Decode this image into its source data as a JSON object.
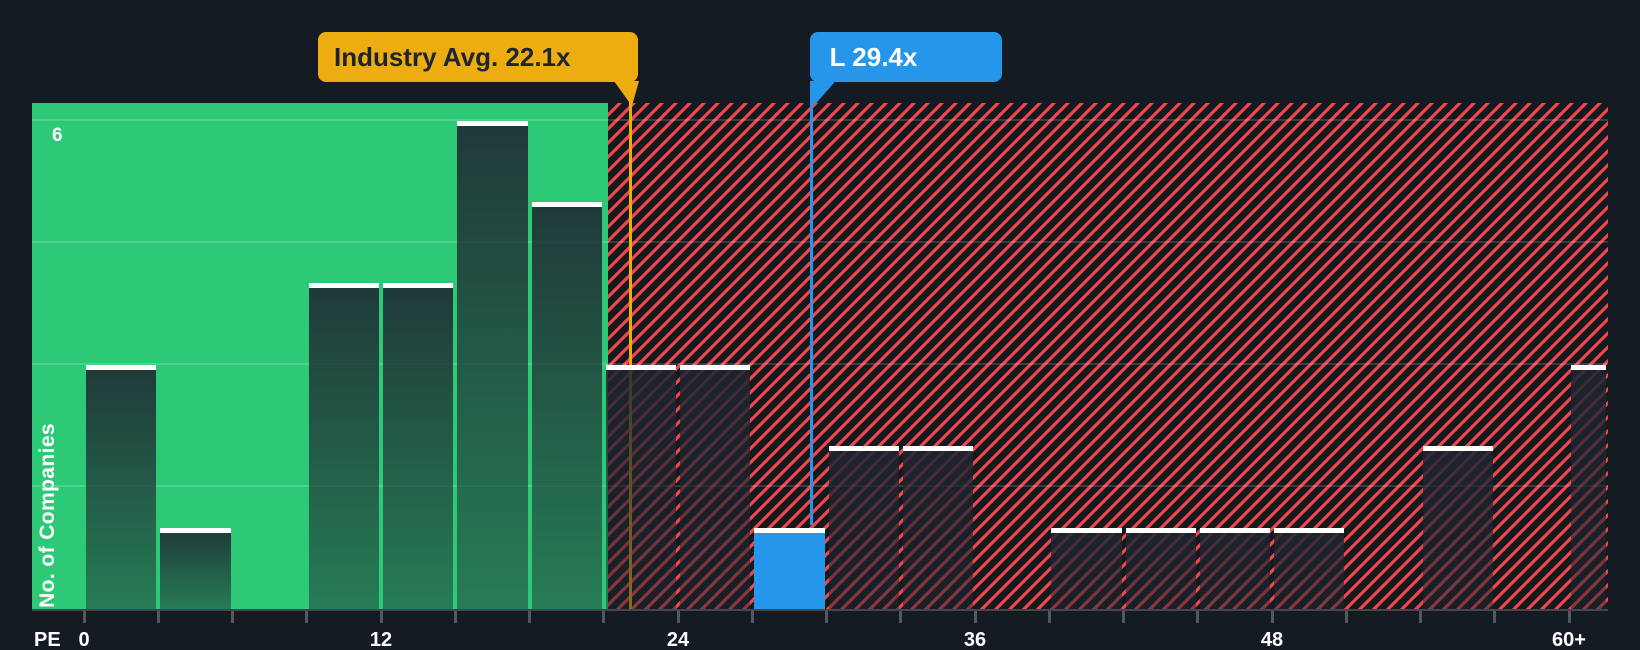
{
  "colors": {
    "background": "#151b23",
    "green_zone": "#2dc977",
    "hatch_background": "#14181f",
    "hatch_stripe": "#ef4749",
    "bar_overlay": "#1e2530",
    "bar_top_stroke": "#ffffff",
    "highlight_bar": "#2696ea",
    "industry_marker": "#edad10",
    "company_marker": "#2696ea",
    "callout_text_dark": "#1d2530",
    "axis_line": "#42464d",
    "tick": "#54585f",
    "label": "#ffffff"
  },
  "chart_data": {
    "type": "bar",
    "subtype": "histogram",
    "x_axis": {
      "label": "PE",
      "range": [
        0,
        63.6
      ],
      "minor_tick_step": 3,
      "tick_labels": [
        {
          "value": 0,
          "label": "0"
        },
        {
          "value": 12,
          "label": "12"
        },
        {
          "value": 24,
          "label": "24"
        },
        {
          "value": 36,
          "label": "36"
        },
        {
          "value": 48,
          "label": "48"
        },
        {
          "value": 60,
          "label": "60+"
        }
      ]
    },
    "y_axis": {
      "label": "No. of Companies",
      "range": [
        0,
        6.2
      ],
      "max_tick_label": "6",
      "gridline_values": [
        1.5,
        3,
        4.5,
        6
      ],
      "grid": true
    },
    "bucket_size": 3,
    "buckets": [
      {
        "start": 0,
        "count": 3
      },
      {
        "start": 3,
        "count": 1
      },
      {
        "start": 6,
        "count": 0
      },
      {
        "start": 9,
        "count": 4
      },
      {
        "start": 12,
        "count": 4
      },
      {
        "start": 15,
        "count": 6
      },
      {
        "start": 18,
        "count": 5
      },
      {
        "start": 21,
        "count": 3
      },
      {
        "start": 24,
        "count": 3
      },
      {
        "start": 27,
        "count": 1,
        "highlight": true
      },
      {
        "start": 30,
        "count": 2
      },
      {
        "start": 33,
        "count": 2
      },
      {
        "start": 36,
        "count": 0
      },
      {
        "start": 39,
        "count": 1
      },
      {
        "start": 42,
        "count": 1
      },
      {
        "start": 45,
        "count": 1
      },
      {
        "start": 48,
        "count": 1
      },
      {
        "start": 51,
        "count": 0
      },
      {
        "start": 54,
        "count": 2
      },
      {
        "start": 57,
        "count": 0
      },
      {
        "start": 60,
        "count": 3,
        "open_ended": true
      }
    ],
    "zones": {
      "below_average_end_pe": 21.17
    },
    "markers": [
      {
        "id": "industry_avg",
        "label": "Industry Avg. 22.1x",
        "value": 22.1,
        "color": "#edad10"
      },
      {
        "id": "company",
        "label": "L 29.4x",
        "value": 29.4,
        "color": "#2696ea"
      }
    ]
  }
}
